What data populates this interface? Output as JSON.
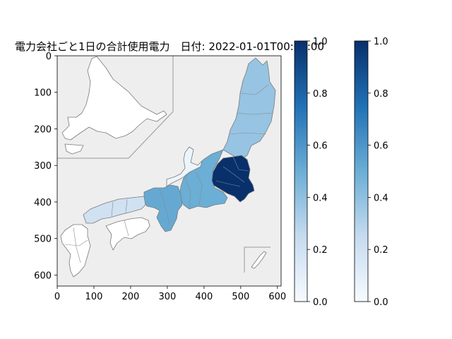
{
  "chart_data": {
    "type": "map",
    "title": "電力会社ごと1日の合計使用電力　日付: 2022-01-01T00:00:00",
    "x_ticks": [
      "0",
      "100",
      "200",
      "300",
      "400",
      "500",
      "600"
    ],
    "y_ticks": [
      "0",
      "100",
      "200",
      "300",
      "400",
      "500",
      "600"
    ],
    "xlim": [
      0,
      610
    ],
    "ylim": [
      630,
      0
    ],
    "grid": false,
    "colormap": "Blues",
    "background_color": "#eeeeee",
    "colorbars": [
      {
        "ticks": [
          "0.0",
          "0.2",
          "0.4",
          "0.6",
          "0.8",
          "1.0"
        ],
        "range": [
          0,
          1
        ]
      },
      {
        "ticks": [
          "0.0",
          "0.2",
          "0.4",
          "0.6",
          "0.8",
          "1.0"
        ],
        "range": [
          0,
          1
        ]
      }
    ],
    "regions": [
      {
        "name": "Hokkaido",
        "value": 0.0
      },
      {
        "name": "Tohoku",
        "value": 0.38
      },
      {
        "name": "Tokyo",
        "value": 1.0
      },
      {
        "name": "Chubu",
        "value": 0.5
      },
      {
        "name": "Hokuriku",
        "value": 0.05
      },
      {
        "name": "Kansai",
        "value": 0.52
      },
      {
        "name": "Chugoku",
        "value": 0.2
      },
      {
        "name": "Shikoku",
        "value": 0.0
      },
      {
        "name": "Kyushu",
        "value": 0.0
      },
      {
        "name": "Okinawa",
        "value": 0.0
      }
    ]
  }
}
